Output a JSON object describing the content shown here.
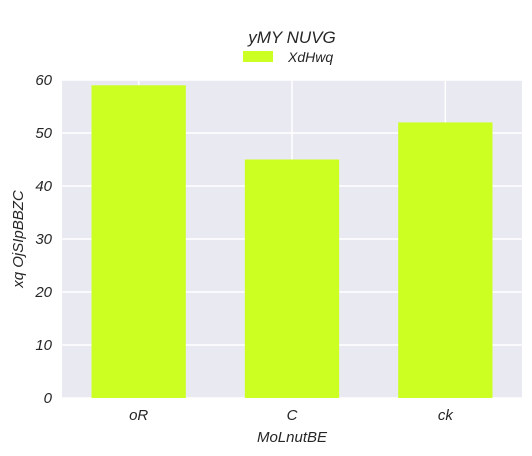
{
  "chart_data": {
    "type": "bar",
    "title": "yMY NUVG",
    "xlabel": "MoLnutBE",
    "ylabel": "xq OjSIpBBZC",
    "categories": [
      "oR",
      "C",
      "ck"
    ],
    "series": [
      {
        "name": "XdHwq",
        "values": [
          59,
          45,
          52
        ]
      }
    ],
    "ylim": [
      0,
      60
    ],
    "yticks": [
      0,
      10,
      20,
      30,
      40,
      50,
      60
    ],
    "grid": true,
    "legend": "top-center",
    "colors": {
      "bar": "#ccff22",
      "background": "#e9e9f1",
      "grid": "#ffffff"
    }
  }
}
